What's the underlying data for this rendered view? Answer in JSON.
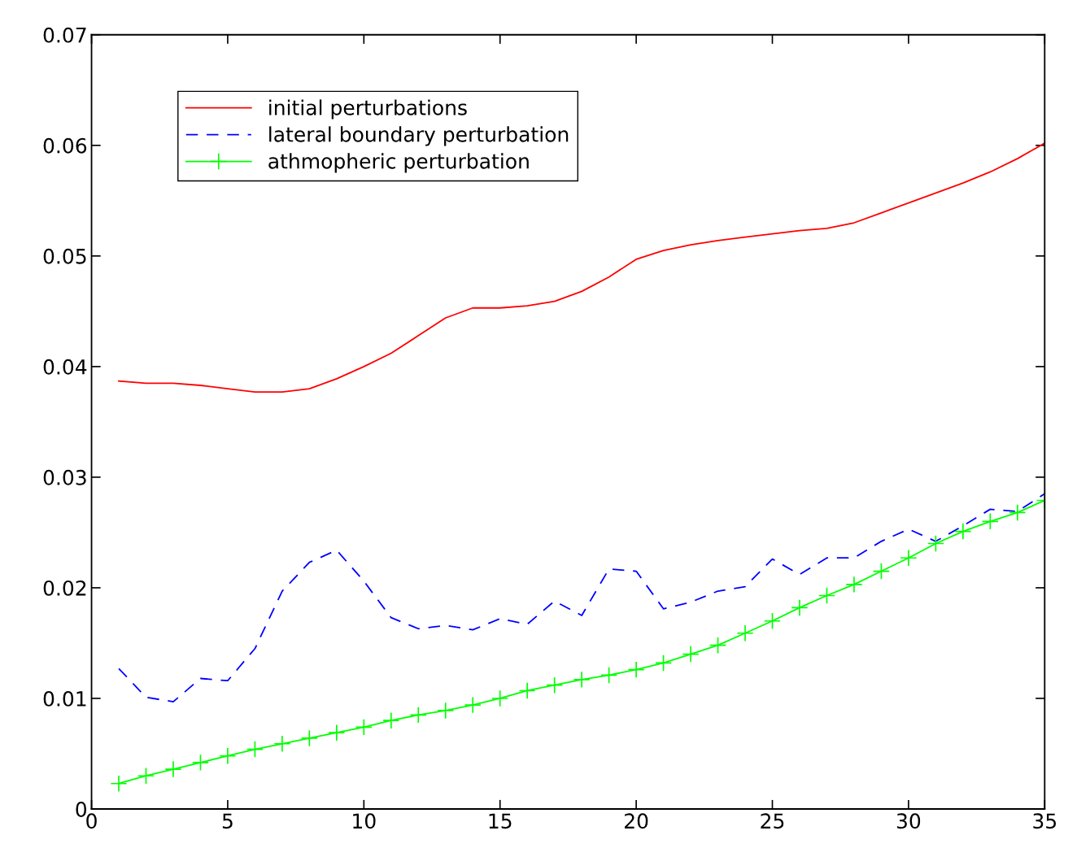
{
  "chart_data": {
    "type": "line",
    "x": [
      1,
      2,
      3,
      4,
      5,
      6,
      7,
      8,
      9,
      10,
      11,
      12,
      13,
      14,
      15,
      16,
      17,
      18,
      19,
      20,
      21,
      22,
      23,
      24,
      25,
      26,
      27,
      28,
      29,
      30,
      31,
      32,
      33,
      34,
      35
    ],
    "series": [
      {
        "name": "initial perturbations",
        "color": "#ff0000",
        "line_style": "solid",
        "marker": "none",
        "values": [
          0.0387,
          0.0385,
          0.0385,
          0.0383,
          0.038,
          0.0377,
          0.0377,
          0.038,
          0.0389,
          0.04,
          0.0412,
          0.0428,
          0.0444,
          0.0453,
          0.0453,
          0.0455,
          0.0459,
          0.0468,
          0.0481,
          0.0497,
          0.0505,
          0.051,
          0.0514,
          0.0517,
          0.052,
          0.0523,
          0.0525,
          0.053,
          0.0539,
          0.0548,
          0.0557,
          0.0566,
          0.0576,
          0.0588,
          0.0602
        ]
      },
      {
        "name": "lateral boundary perturbation",
        "color": "#0000ff",
        "line_style": "dashed",
        "marker": "none",
        "values": [
          0.0127,
          0.0101,
          0.0097,
          0.0118,
          0.0116,
          0.0145,
          0.0197,
          0.0223,
          0.0234,
          0.0206,
          0.0173,
          0.0163,
          0.0166,
          0.0162,
          0.0172,
          0.0167,
          0.0188,
          0.0175,
          0.0217,
          0.0215,
          0.0181,
          0.0187,
          0.0197,
          0.0201,
          0.0226,
          0.0212,
          0.0227,
          0.0227,
          0.0242,
          0.0253,
          0.0242,
          0.0256,
          0.0271,
          0.0269,
          0.0285
        ]
      },
      {
        "name": "athmopheric perturbation",
        "color": "#00ff00",
        "line_style": "solid",
        "marker": "cross",
        "values": [
          0.0023,
          0.003,
          0.0036,
          0.0042,
          0.0048,
          0.0054,
          0.0059,
          0.0064,
          0.0069,
          0.0074,
          0.008,
          0.0085,
          0.0089,
          0.0094,
          0.01,
          0.0107,
          0.0112,
          0.0117,
          0.0121,
          0.0126,
          0.0132,
          0.014,
          0.0148,
          0.0159,
          0.017,
          0.0182,
          0.0193,
          0.0203,
          0.0215,
          0.0227,
          0.024,
          0.0251,
          0.026,
          0.0268,
          0.0279
        ]
      }
    ],
    "xlim": [
      0,
      35
    ],
    "xticks": [
      0,
      5,
      10,
      15,
      20,
      25,
      30,
      35
    ],
    "ylim": [
      0,
      0.07
    ],
    "yticks": [
      0,
      0.01,
      0.02,
      0.03,
      0.04,
      0.05,
      0.06,
      0.07
    ],
    "grid": false,
    "legend": "top left"
  }
}
